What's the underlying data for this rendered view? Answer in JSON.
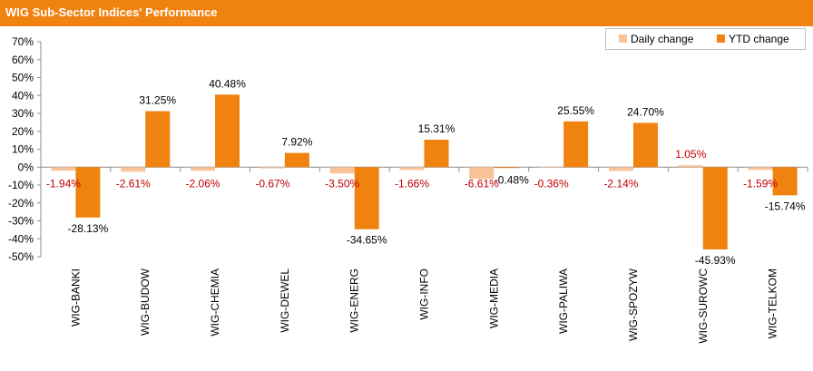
{
  "header": {
    "title": "WIG Sub-Sector Indices' Performance"
  },
  "colors": {
    "title_bar": "#f0820f",
    "daily": "#f9c39a",
    "ytd": "#f0820f",
    "daily_label": "#c00000",
    "ytd_label": "#000000"
  },
  "chart_data": {
    "type": "bar",
    "title": "WIG Sub-Sector Indices' Performance",
    "categories": [
      "WIG-BANKI",
      "WIG-BUDOW",
      "WIG-CHEMIA",
      "WIG-DEWEL",
      "WIG-ENERG",
      "WIG-INFO",
      "WIG-MEDIA",
      "WIG-PALIWA",
      "WIG-SPOZYW",
      "WIG-SUROWC",
      "WIG-TELKOM"
    ],
    "series": [
      {
        "name": "Daily change",
        "values": [
          -1.94,
          -2.61,
          -2.06,
          -0.67,
          -3.5,
          -1.66,
          -6.61,
          -0.36,
          -2.14,
          1.05,
          -1.59
        ],
        "labels": [
          "-1.94%",
          "-2.61%",
          "-2.06%",
          "-0.67%",
          "-3.50%",
          "-1.66%",
          "-6.61%",
          "-0.36%",
          "-2.14%",
          "1.05%",
          "-1.59%"
        ]
      },
      {
        "name": "YTD change",
        "values": [
          -28.13,
          31.25,
          40.48,
          7.92,
          -34.65,
          15.31,
          -0.48,
          25.55,
          24.7,
          -45.93,
          -15.74
        ],
        "labels": [
          "-28.13%",
          "31.25%",
          "40.48%",
          "7.92%",
          "-34.65%",
          "15.31%",
          "-0.48%",
          "25.55%",
          "24.70%",
          "-45.93%",
          "-15.74%"
        ]
      }
    ],
    "y_ticks": [
      -50,
      -40,
      -30,
      -20,
      -10,
      0,
      10,
      20,
      30,
      40,
      50,
      60,
      70
    ],
    "y_tick_labels": [
      "-50%",
      "-40%",
      "-30%",
      "-20%",
      "-10%",
      "0%",
      "10%",
      "20%",
      "30%",
      "40%",
      "50%",
      "60%",
      "70%"
    ],
    "ylim": [
      -50,
      70
    ],
    "grid": false,
    "legend_position": "top-right"
  }
}
